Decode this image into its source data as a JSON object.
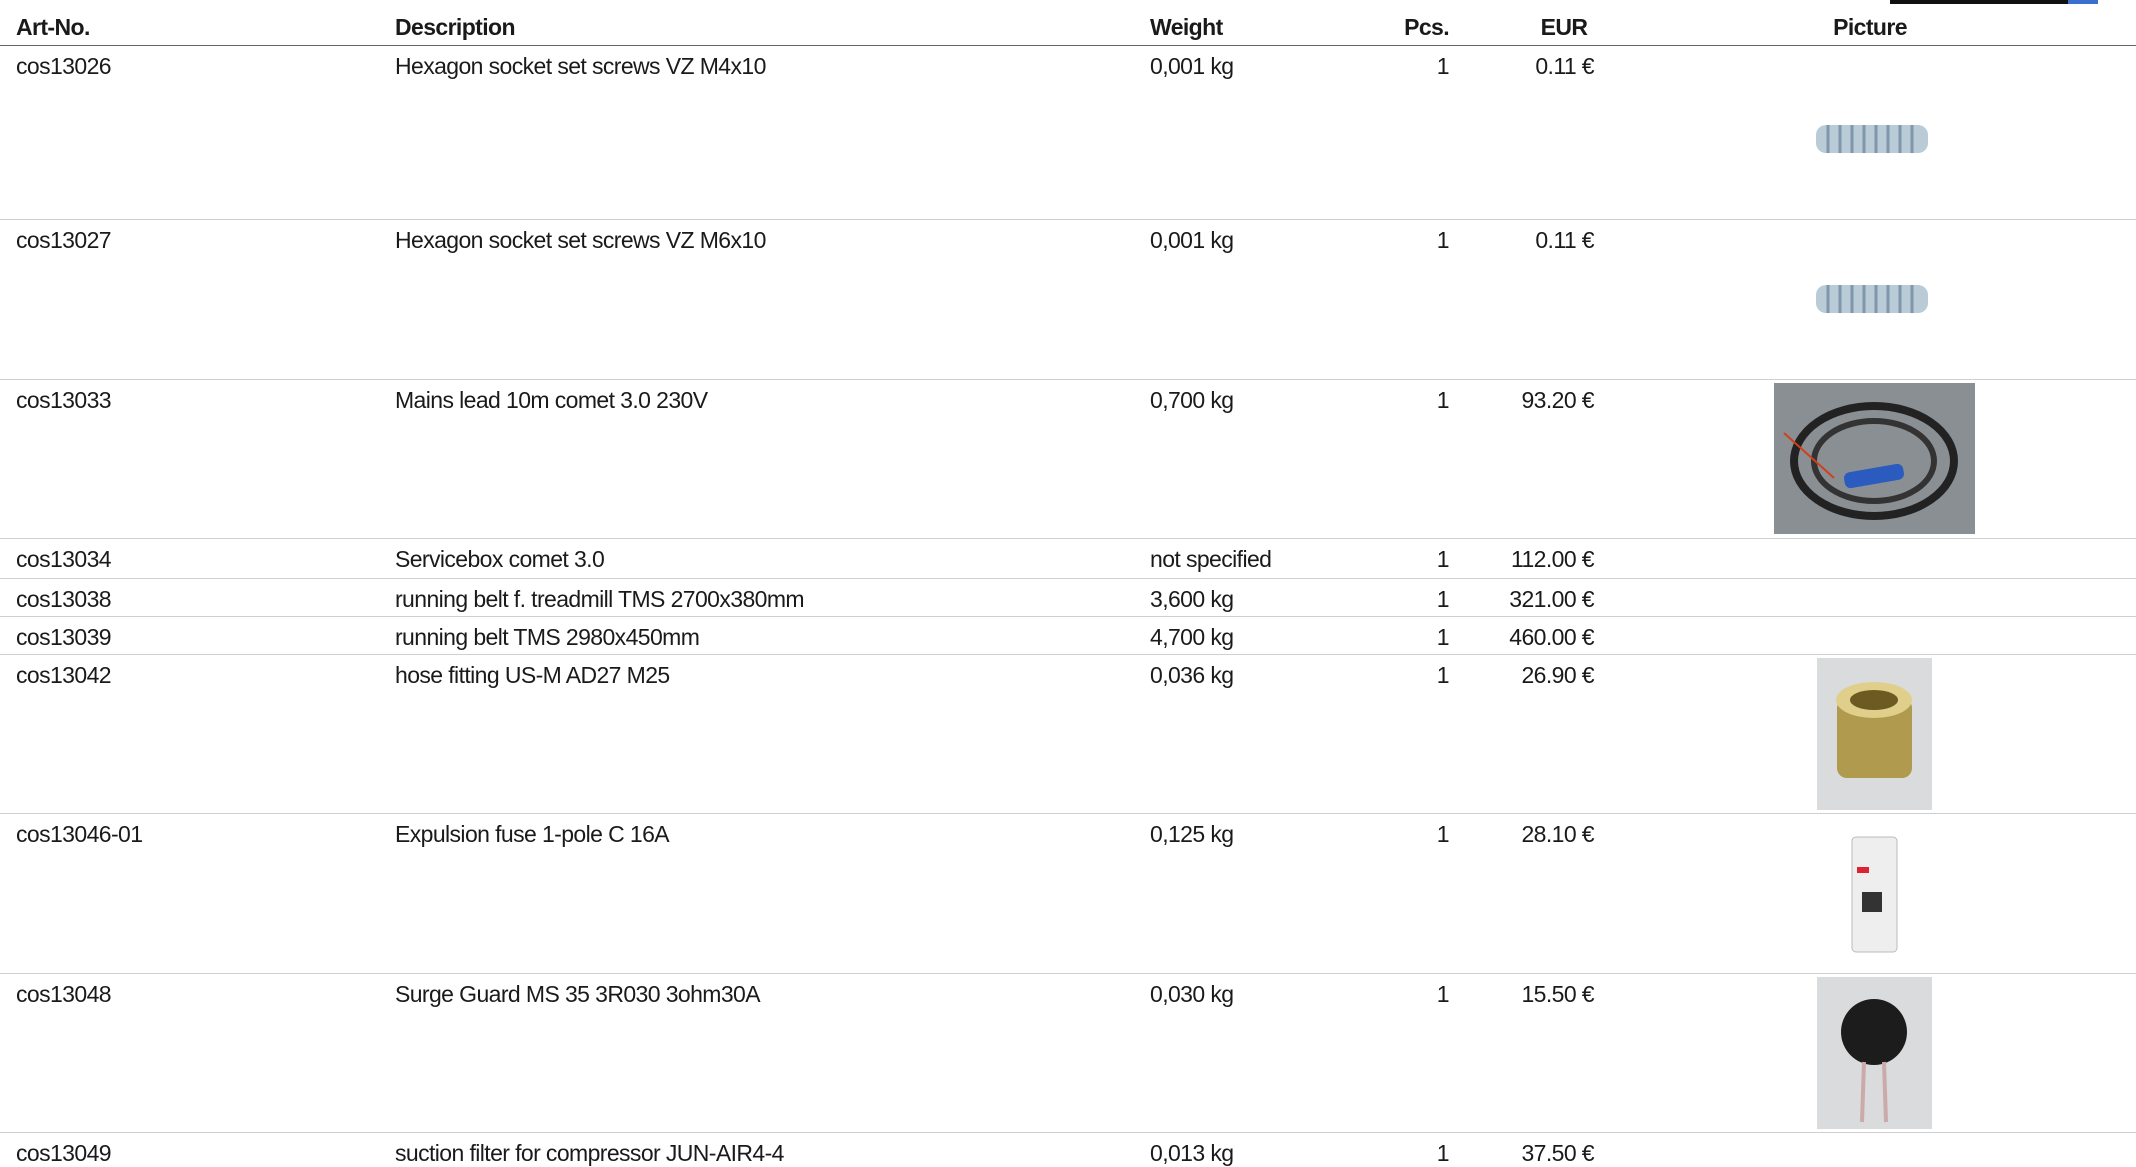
{
  "header": {
    "columns": [
      "Art-No.",
      "Description",
      "Weight",
      "Pcs.",
      "EUR",
      "Picture"
    ]
  },
  "table": {
    "rows": [
      [
        "cos13026",
        "Hexagon socket set screws VZ M4x10",
        "0,001 kg",
        "1",
        "0.11 €"
      ],
      [
        "cos13027",
        "Hexagon socket set screws VZ M6x10",
        "0,001 kg",
        "1",
        "0.11 €"
      ],
      [
        "cos13033",
        "Mains lead 10m comet 3.0 230V",
        "0,700 kg",
        "1",
        "93.20 €"
      ],
      [
        "cos13034",
        "Servicebox comet 3.0",
        "not specified",
        "1",
        "112.00 €"
      ],
      [
        "cos13038",
        "running belt f. treadmill TMS 2700x380mm",
        "3,600 kg",
        "1",
        "321.00 €"
      ],
      [
        "cos13039",
        "running belt TMS 2980x450mm",
        "4,700 kg",
        "1",
        "460.00 €"
      ],
      [
        "cos13042",
        "hose fitting US-M AD27 M25",
        "0,036 kg",
        "1",
        "26.90 €"
      ],
      [
        "cos13046-01",
        "Expulsion fuse 1-pole C 16A",
        "0,125 kg",
        "1",
        "28.10 €"
      ],
      [
        "cos13048",
        "Surge Guard MS 35 3R030 3ohm30A",
        "0,030 kg",
        "1",
        "15.50 €"
      ],
      [
        "cos13049",
        "suction filter for compressor JUN-AIR4-4",
        "0,013 kg",
        "1",
        "37.50 €"
      ]
    ]
  }
}
